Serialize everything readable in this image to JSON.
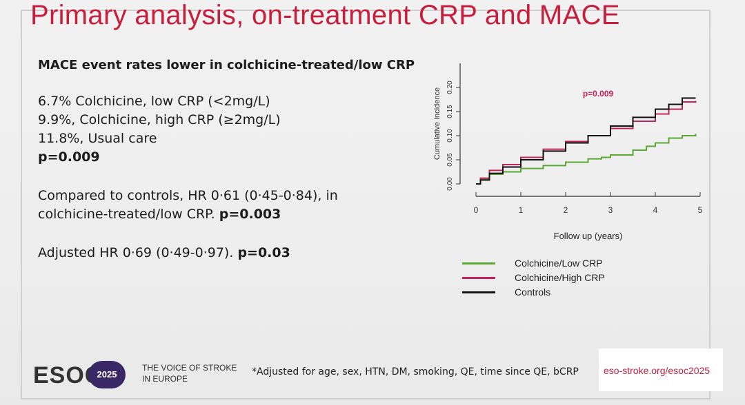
{
  "slide": {
    "title": "Primary analysis, on-treatment CRP and MACE",
    "subheading": "MACE event rates lower in colchicine-treated/low CRP",
    "rates": [
      "6.7% Colchicine, low CRP (<2mg/L)",
      "9.9%, Colchicine, high CRP (≥2mg/L)",
      "11.8%, Usual care"
    ],
    "p_value": "p=0.009",
    "comparison_line1": "Compared to controls, HR 0·61 (0·45-0·84), in",
    "comparison_line2_text": "colchicine-treated/low CRP.",
    "comparison_line2_p": "p=0.003",
    "adjusted_text": "Adjusted HR 0·69 (0·49-0·97).",
    "adjusted_p": "p=0.03"
  },
  "chart_data": {
    "type": "line",
    "xlabel": "Follow up (years)",
    "ylabel": "Cumulative Incidence",
    "xlim": [
      0,
      5
    ],
    "ylim": [
      0,
      0.25
    ],
    "x_ticks": [
      "0",
      "1",
      "2",
      "3",
      "4",
      "5"
    ],
    "y_ticks": [
      "0.00",
      "0.05",
      "0.10",
      "0.15",
      "0.20"
    ],
    "annotation": "p=0.009",
    "grid": false,
    "series": [
      {
        "name": "Colchicine/Low CRP",
        "color": "#5aa832",
        "x": [
          0,
          0.1,
          0.3,
          0.6,
          1.0,
          1.5,
          2.0,
          2.5,
          2.8,
          3.0,
          3.5,
          3.8,
          4.0,
          4.3,
          4.6,
          4.9
        ],
        "y": [
          0.0,
          0.01,
          0.02,
          0.025,
          0.032,
          0.038,
          0.045,
          0.052,
          0.055,
          0.06,
          0.07,
          0.078,
          0.085,
          0.095,
          0.1,
          0.104
        ]
      },
      {
        "name": "Colchicine/High CRP",
        "color": "#c2245a",
        "x": [
          0,
          0.1,
          0.3,
          0.6,
          1.0,
          1.5,
          2.0,
          2.5,
          3.0,
          3.5,
          4.0,
          4.3,
          4.6,
          4.9
        ],
        "y": [
          0.0,
          0.012,
          0.028,
          0.04,
          0.055,
          0.072,
          0.088,
          0.1,
          0.115,
          0.13,
          0.145,
          0.155,
          0.17,
          0.172
        ]
      },
      {
        "name": "Controls",
        "color": "#111111",
        "x": [
          0,
          0.1,
          0.3,
          0.6,
          1.0,
          1.5,
          2.0,
          2.5,
          3.0,
          3.5,
          4.0,
          4.3,
          4.6,
          4.9
        ],
        "y": [
          0.0,
          0.008,
          0.022,
          0.035,
          0.05,
          0.068,
          0.085,
          0.1,
          0.12,
          0.138,
          0.155,
          0.165,
          0.178,
          0.178
        ]
      }
    ],
    "legend_position": "bottom"
  },
  "footer": {
    "logo_text": "ESOC",
    "badge_text": "2025",
    "tagline_line1": "THE VOICE OF STROKE",
    "tagline_line2": "IN EUROPE",
    "footnote": "*Adjusted for age, sex, HTN, DM, smoking, QE, time since QE, bCRP",
    "url": "eso-stroke.org/esoc2025"
  },
  "colors": {
    "title_red": "#c81e3c",
    "badge_purple": "#3a2866"
  }
}
